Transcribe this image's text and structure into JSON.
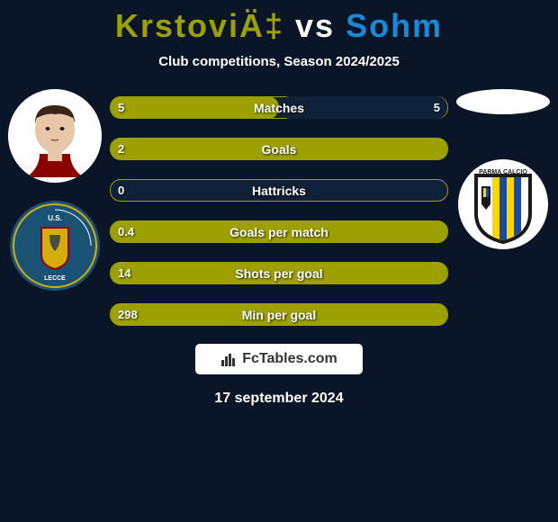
{
  "title": {
    "player1": "KrstoviÄ‡",
    "vs": "vs",
    "player2": "Sohm",
    "player1_color": "#9ca000",
    "player2_color": "#1b8ad6"
  },
  "subtitle": "Club competitions, Season 2024/2025",
  "stats": [
    {
      "label": "Matches",
      "left_value": "5",
      "right_value": "5",
      "left_fill_pct": 50,
      "right_fill_pct": 50,
      "left_color": "#9ca000",
      "right_color": "#0f2138"
    },
    {
      "label": "Goals",
      "left_value": "2",
      "right_value": "",
      "left_fill_pct": 100,
      "right_fill_pct": 0,
      "left_color": "#9ca000",
      "right_color": "#0f2138"
    },
    {
      "label": "Hattricks",
      "left_value": "0",
      "right_value": "",
      "left_fill_pct": 0,
      "right_fill_pct": 0,
      "left_color": "#9ca000",
      "right_color": "#0f2138"
    },
    {
      "label": "Goals per match",
      "left_value": "0.4",
      "right_value": "",
      "left_fill_pct": 100,
      "right_fill_pct": 0,
      "left_color": "#9ca000",
      "right_color": "#0f2138"
    },
    {
      "label": "Shots per goal",
      "left_value": "14",
      "right_value": "",
      "left_fill_pct": 100,
      "right_fill_pct": 0,
      "left_color": "#9ca000",
      "right_color": "#0f2138"
    },
    {
      "label": "Min per goal",
      "left_value": "298",
      "right_value": "",
      "left_fill_pct": 100,
      "right_fill_pct": 0,
      "left_color": "#9ca000",
      "right_color": "#0f2138"
    }
  ],
  "brand": "FcTables.com",
  "date": "17 september 2024",
  "colors": {
    "background": "#0a1628",
    "bar_border": "#9ca000",
    "text": "#ffffff"
  },
  "left_avatar": {
    "bg": "#ffffff",
    "face": "#e8c7a8",
    "hair": "#3a2518"
  },
  "left_badge": {
    "bg": "#1a5276",
    "accent": "#d4ac0d",
    "text": "U.S. LECCE"
  },
  "right_badge": {
    "bg": "#ffffff",
    "shield_border": "#1a1a1a",
    "stripes": [
      "#ffd700",
      "#1a4ba0"
    ]
  }
}
